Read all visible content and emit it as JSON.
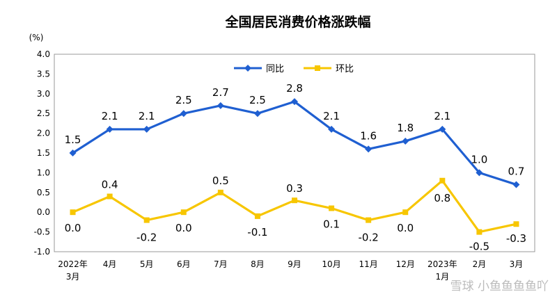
{
  "chart_data": {
    "type": "line",
    "title": "全国居民消费价格涨跌幅",
    "yunit": "(%)",
    "categories": [
      "2022年\n3月",
      "4月",
      "5月",
      "6月",
      "7月",
      "8月",
      "9月",
      "10月",
      "11月",
      "12月",
      "2023年\n1月",
      "2月",
      "3月"
    ],
    "ylim": [
      -1.0,
      4.0
    ],
    "yticks": [
      "4.0",
      "3.5",
      "3.0",
      "2.5",
      "2.0",
      "1.5",
      "1.0",
      "0.5",
      "0.0",
      "-0.5",
      "-1.0"
    ],
    "legend_position": "top",
    "series": [
      {
        "name": "同比",
        "color": "#1f5fd1",
        "marker": "diamond",
        "values": [
          1.5,
          2.1,
          2.1,
          2.5,
          2.7,
          2.5,
          2.8,
          2.1,
          1.6,
          1.8,
          2.1,
          1.0,
          0.7
        ],
        "labels": [
          "1.5",
          "2.1",
          "2.1",
          "2.5",
          "2.7",
          "2.5",
          "2.8",
          "2.1",
          "1.6",
          "1.8",
          "2.1",
          "1.0",
          "0.7"
        ]
      },
      {
        "name": "环比",
        "color": "#f7c600",
        "marker": "square",
        "values": [
          0.0,
          0.4,
          -0.2,
          0.0,
          0.5,
          -0.1,
          0.3,
          0.1,
          -0.2,
          0.0,
          0.8,
          -0.5,
          -0.3
        ],
        "labels": [
          "0.0",
          "0.4",
          "-0.2",
          "0.0",
          "0.5",
          "-0.1",
          "0.3",
          "0.1",
          "-0.2",
          "0.0",
          "0.8",
          "-0.5",
          "-0.3"
        ]
      }
    ]
  },
  "watermark": "雪球 小鱼鱼鱼鱼吖"
}
